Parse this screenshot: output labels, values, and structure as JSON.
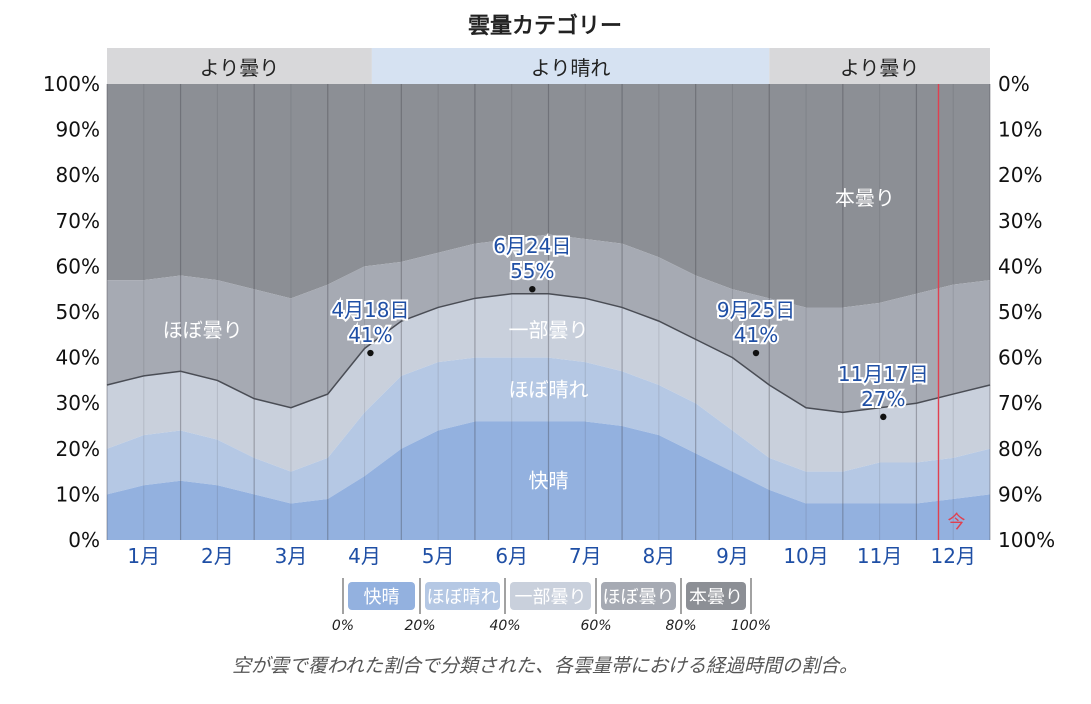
{
  "chart_data": {
    "type": "area",
    "title": "雲量カテゴリー",
    "caption": "空が雲で覆われた割合で分類された、各雲量帯における経過時間の割合。",
    "months": [
      "1月",
      "2月",
      "3月",
      "4月",
      "5月",
      "6月",
      "7月",
      "8月",
      "9月",
      "10月",
      "11月",
      "12月"
    ],
    "y_left_ticks": [
      "0%",
      "10%",
      "20%",
      "30%",
      "40%",
      "50%",
      "60%",
      "70%",
      "80%",
      "90%",
      "100%"
    ],
    "y_right_ticks": [
      "100%",
      "90%",
      "80%",
      "70%",
      "60%",
      "50%",
      "40%",
      "30%",
      "20%",
      "10%",
      "0%"
    ],
    "ylim": [
      0,
      100
    ],
    "top_bands": [
      {
        "label": "より曇り",
        "start_month": 1.0,
        "end_month": 4.6,
        "color": "#d8d8da"
      },
      {
        "label": "より晴れ",
        "start_month": 4.6,
        "end_month": 10.0,
        "color": "#d6e2f2"
      },
      {
        "label": "より曇り",
        "start_month": 10.0,
        "end_month": 13.0,
        "color": "#d8d8da"
      }
    ],
    "x_months": [
      1.0,
      1.5,
      2.0,
      2.5,
      3.0,
      3.5,
      4.0,
      4.5,
      5.0,
      5.5,
      6.0,
      6.5,
      7.0,
      7.5,
      8.0,
      8.5,
      9.0,
      9.5,
      10.0,
      10.5,
      11.0,
      11.5,
      12.0,
      12.5,
      13.0
    ],
    "series": [
      {
        "name": "快晴",
        "color": "#93b1df",
        "values": [
          10,
          12,
          13,
          12,
          10,
          8,
          9,
          14,
          20,
          24,
          26,
          26,
          26,
          26,
          25,
          23,
          19,
          15,
          11,
          8,
          8,
          8,
          8,
          9,
          10
        ]
      },
      {
        "name": "ほぼ晴れ",
        "color": "#b5c8e4",
        "values": [
          20,
          23,
          24,
          22,
          18,
          15,
          18,
          28,
          36,
          39,
          40,
          40,
          40,
          39,
          37,
          34,
          30,
          24,
          18,
          15,
          15,
          17,
          17,
          18,
          20
        ]
      },
      {
        "name": "一部曇り",
        "color": "#c9d0dc",
        "values": [
          34,
          36,
          37,
          35,
          31,
          29,
          32,
          42,
          48,
          51,
          53,
          54,
          54,
          53,
          51,
          48,
          44,
          40,
          34,
          29,
          28,
          29,
          30,
          32,
          34
        ]
      },
      {
        "name": "ほぼ曇り",
        "color": "#a6aab3",
        "values": [
          57,
          57,
          58,
          57,
          55,
          53,
          56,
          60,
          61,
          63,
          65,
          66,
          67,
          66,
          65,
          62,
          58,
          55,
          53,
          51,
          51,
          52,
          54,
          56,
          57
        ]
      },
      {
        "name": "本曇り",
        "color": "#8c8f95",
        "values": [
          100,
          100,
          100,
          100,
          100,
          100,
          100,
          100,
          100,
          100,
          100,
          100,
          100,
          100,
          100,
          100,
          100,
          100,
          100,
          100,
          100,
          100,
          100,
          100,
          100
        ]
      }
    ],
    "clear_line": [
      34,
      36,
      37,
      35,
      31,
      29,
      32,
      42,
      48,
      51,
      53,
      54,
      54,
      53,
      51,
      48,
      44,
      40,
      34,
      29,
      28,
      29,
      30,
      32,
      34
    ],
    "region_labels": [
      {
        "text": "ほぼ曇り",
        "month": 2.3,
        "value": 46
      },
      {
        "text": "一部曇り",
        "month": 7.0,
        "value": 46
      },
      {
        "text": "ほぼ晴れ",
        "month": 7.0,
        "value": 33
      },
      {
        "text": "快晴",
        "month": 7.0,
        "value": 13
      },
      {
        "text": "本曇り",
        "month": 11.3,
        "value": 75
      }
    ],
    "annotations": [
      {
        "date": "4月18日",
        "pct": "41%",
        "month": 4.58,
        "value": 41
      },
      {
        "date": "6月24日",
        "pct": "55%",
        "month": 6.78,
        "value": 55
      },
      {
        "date": "9月25日",
        "pct": "41%",
        "month": 9.82,
        "value": 41
      },
      {
        "date": "11月17日",
        "pct": "27%",
        "month": 11.55,
        "value": 27
      }
    ],
    "now": {
      "label": "今",
      "month": 12.3,
      "color": "#e04050"
    },
    "legend": {
      "items": [
        {
          "label": "快晴",
          "color": "#93b1df"
        },
        {
          "label": "ほぼ晴れ",
          "color": "#b5c8e4"
        },
        {
          "label": "一部曇り",
          "color": "#c9d0dc"
        },
        {
          "label": "ほぼ曇り",
          "color": "#a6aab3"
        },
        {
          "label": "本曇り",
          "color": "#8c8f95"
        }
      ],
      "ticks": [
        "0%",
        "20%",
        "40%",
        "60%",
        "80%",
        "100%"
      ]
    }
  }
}
